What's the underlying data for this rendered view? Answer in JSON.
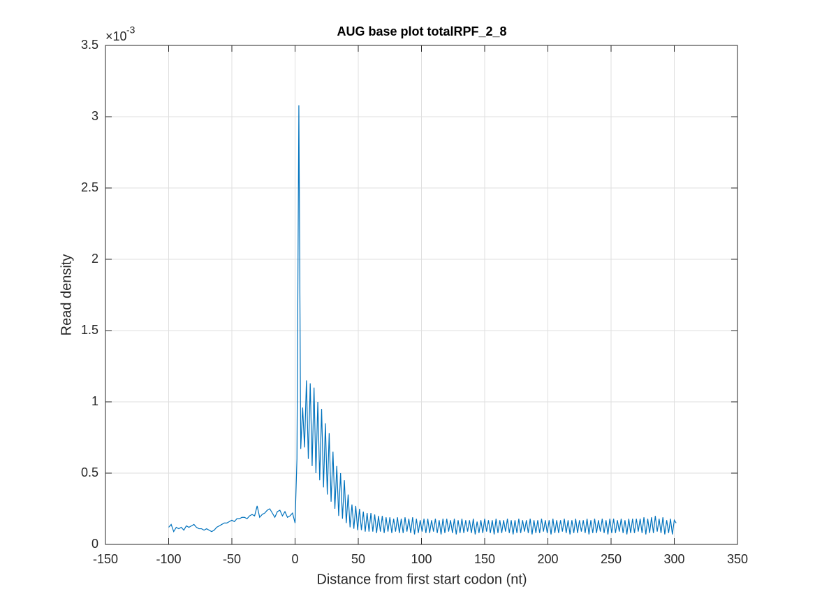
{
  "chart_data": {
    "type": "line",
    "title": "AUG base plot totalRPF_2_8",
    "x_label": "Distance from first start codon (nt)",
    "y_label": "Read density",
    "y_multiplier_base": "×10",
    "y_multiplier_exponent": "-3",
    "xlim": [
      -150,
      350
    ],
    "ylim": [
      0,
      3.5
    ],
    "xticks": [
      -150,
      -100,
      -50,
      0,
      50,
      100,
      150,
      200,
      250,
      300,
      350
    ],
    "yticks": [
      0,
      0.5,
      1,
      1.5,
      2,
      2.5,
      3,
      3.5
    ],
    "grid": true,
    "x": [
      -100,
      -98,
      -96,
      -94,
      -92,
      -90,
      -88,
      -86,
      -84,
      -82,
      -80,
      -78,
      -76,
      -74,
      -72,
      -70,
      -68,
      -66,
      -64,
      -62,
      -60,
      -58,
      -56,
      -54,
      -52,
      -50,
      -48,
      -46,
      -44,
      -42,
      -40,
      -38,
      -36,
      -34,
      -32,
      -30,
      -28,
      -26,
      -24,
      -22,
      -20,
      -18,
      -16,
      -14,
      -12,
      -10,
      -8,
      -6,
      -4,
      -2,
      0,
      1.5,
      3,
      4.5,
      6,
      7.5,
      9,
      10.5,
      12,
      13.5,
      15,
      16.5,
      18,
      19.5,
      21,
      22.5,
      24,
      25.5,
      27,
      28.5,
      30,
      31.5,
      33,
      34.5,
      36,
      37.5,
      39,
      40.5,
      42,
      43.5,
      45,
      46.5,
      48,
      49.5,
      51,
      52.5,
      54,
      55.5,
      57,
      58.5,
      60,
      61.5,
      63,
      64.5,
      66,
      67.5,
      69,
      70.5,
      72,
      73.5,
      75,
      76.5,
      78,
      79.5,
      81,
      82.5,
      84,
      85.5,
      87,
      88.5,
      90,
      91.5,
      93,
      94.5,
      96,
      97.5,
      99,
      100.5,
      102,
      103.5,
      105,
      106.5,
      108,
      109.5,
      111,
      112.5,
      114,
      115.5,
      117,
      118.5,
      120,
      121.5,
      123,
      124.5,
      126,
      127.5,
      129,
      130.5,
      132,
      133.5,
      135,
      136.5,
      138,
      139.5,
      141,
      142.5,
      144,
      145.5,
      147,
      148.5,
      150,
      151.5,
      153,
      154.5,
      156,
      157.5,
      159,
      160.5,
      162,
      163.5,
      165,
      166.5,
      168,
      169.5,
      171,
      172.5,
      174,
      175.5,
      177,
      178.5,
      180,
      181.5,
      183,
      184.5,
      186,
      187.5,
      189,
      190.5,
      192,
      193.5,
      195,
      196.5,
      198,
      199.5,
      201,
      202.5,
      204,
      205.5,
      207,
      208.5,
      210,
      211.5,
      213,
      214.5,
      216,
      217.5,
      219,
      220.5,
      222,
      223.5,
      225,
      226.5,
      228,
      229.5,
      231,
      232.5,
      234,
      235.5,
      237,
      238.5,
      240,
      241.5,
      243,
      244.5,
      246,
      247.5,
      249,
      250.5,
      252,
      253.5,
      255,
      256.5,
      258,
      259.5,
      261,
      262.5,
      264,
      265.5,
      267,
      268.5,
      270,
      271.5,
      273,
      274.5,
      276,
      277.5,
      279,
      280.5,
      282,
      283.5,
      285,
      286.5,
      288,
      289.5,
      291,
      292.5,
      294,
      295.5,
      297,
      298.5,
      300,
      301.5
    ],
    "series": [
      {
        "color": "#0072bd",
        "values": [
          0.12,
          0.14,
          0.09,
          0.12,
          0.11,
          0.12,
          0.1,
          0.13,
          0.12,
          0.13,
          0.14,
          0.12,
          0.11,
          0.11,
          0.1,
          0.11,
          0.1,
          0.09,
          0.1,
          0.12,
          0.13,
          0.14,
          0.15,
          0.15,
          0.16,
          0.17,
          0.16,
          0.18,
          0.18,
          0.19,
          0.19,
          0.18,
          0.2,
          0.21,
          0.2,
          0.27,
          0.19,
          0.21,
          0.22,
          0.24,
          0.25,
          0.22,
          0.19,
          0.23,
          0.24,
          0.2,
          0.23,
          0.19,
          0.2,
          0.22,
          0.15,
          0.6,
          3.08,
          0.67,
          0.96,
          0.68,
          1.15,
          0.6,
          1.13,
          0.55,
          1.1,
          0.5,
          1.0,
          0.45,
          0.95,
          0.4,
          0.85,
          0.35,
          0.78,
          0.3,
          0.65,
          0.25,
          0.55,
          0.2,
          0.5,
          0.18,
          0.45,
          0.15,
          0.35,
          0.12,
          0.28,
          0.11,
          0.27,
          0.1,
          0.25,
          0.1,
          0.23,
          0.09,
          0.22,
          0.09,
          0.22,
          0.09,
          0.21,
          0.08,
          0.2,
          0.09,
          0.2,
          0.08,
          0.19,
          0.09,
          0.19,
          0.08,
          0.18,
          0.09,
          0.19,
          0.08,
          0.18,
          0.08,
          0.19,
          0.09,
          0.18,
          0.08,
          0.19,
          0.07,
          0.18,
          0.08,
          0.17,
          0.09,
          0.18,
          0.08,
          0.18,
          0.08,
          0.17,
          0.09,
          0.18,
          0.08,
          0.17,
          0.07,
          0.18,
          0.08,
          0.18,
          0.09,
          0.17,
          0.08,
          0.18,
          0.07,
          0.17,
          0.08,
          0.18,
          0.08,
          0.17,
          0.09,
          0.17,
          0.08,
          0.18,
          0.07,
          0.16,
          0.08,
          0.17,
          0.08,
          0.18,
          0.09,
          0.17,
          0.08,
          0.17,
          0.07,
          0.18,
          0.08,
          0.17,
          0.08,
          0.17,
          0.09,
          0.18,
          0.08,
          0.17,
          0.07,
          0.17,
          0.08,
          0.18,
          0.08,
          0.17,
          0.09,
          0.17,
          0.08,
          0.18,
          0.07,
          0.17,
          0.08,
          0.17,
          0.08,
          0.18,
          0.09,
          0.17,
          0.08,
          0.17,
          0.07,
          0.18,
          0.08,
          0.17,
          0.08,
          0.17,
          0.09,
          0.18,
          0.08,
          0.17,
          0.07,
          0.17,
          0.08,
          0.18,
          0.08,
          0.17,
          0.09,
          0.17,
          0.08,
          0.18,
          0.07,
          0.17,
          0.08,
          0.18,
          0.08,
          0.17,
          0.09,
          0.18,
          0.08,
          0.17,
          0.07,
          0.18,
          0.08,
          0.18,
          0.08,
          0.17,
          0.09,
          0.18,
          0.08,
          0.17,
          0.07,
          0.18,
          0.08,
          0.18,
          0.08,
          0.18,
          0.09,
          0.18,
          0.08,
          0.19,
          0.07,
          0.18,
          0.08,
          0.19,
          0.08,
          0.2,
          0.09,
          0.18,
          0.08,
          0.19,
          0.07,
          0.17,
          0.08,
          0.18,
          0.07,
          0.17,
          0.15
        ]
      }
    ]
  }
}
